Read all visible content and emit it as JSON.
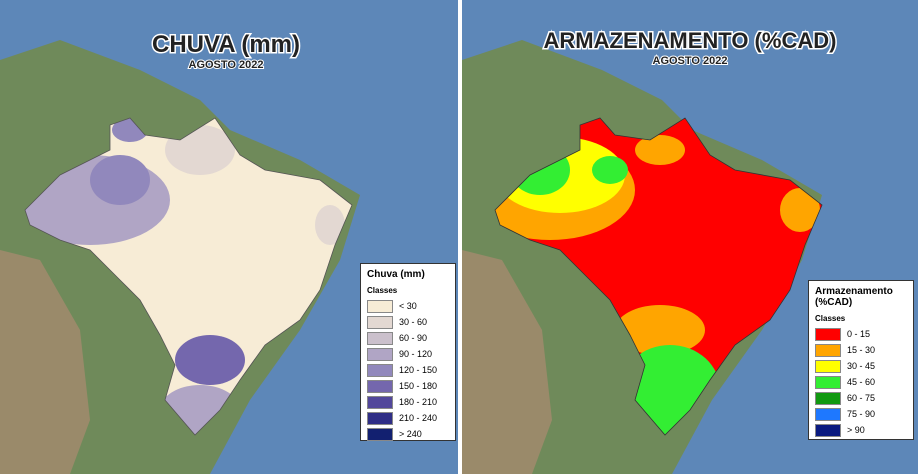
{
  "maps": [
    {
      "title": "CHUVA (mm)",
      "subtitle": "AGOSTO 2022",
      "legend": {
        "title": "Chuva (mm)",
        "subtitle": "Classes",
        "classes": [
          {
            "label": "< 30",
            "color": "#f7ecd6"
          },
          {
            "label": "30 - 60",
            "color": "#e3d8d2"
          },
          {
            "label": "60 - 90",
            "color": "#cbc0cc"
          },
          {
            "label": "90 - 120",
            "color": "#b0a5c5"
          },
          {
            "label": "120 - 150",
            "color": "#9188bc"
          },
          {
            "label": "150 - 180",
            "color": "#7467ad"
          },
          {
            "label": "180 - 210",
            "color": "#52479b"
          },
          {
            "label": "210 - 240",
            "color": "#2f2e86"
          },
          {
            "label": "> 240",
            "color": "#122070"
          }
        ]
      }
    },
    {
      "title": "ARMAZENAMENTO (%CAD)",
      "subtitle": "AGOSTO 2022",
      "legend": {
        "title": "Armazenamento (%CAD)",
        "subtitle": "Classes",
        "classes": [
          {
            "label": "0 - 15",
            "color": "#ff0000"
          },
          {
            "label": "15 - 30",
            "color": "#ffa500"
          },
          {
            "label": "30 - 45",
            "color": "#ffff00"
          },
          {
            "label": "45 - 60",
            "color": "#33ee33"
          },
          {
            "label": "60 - 75",
            "color": "#119911"
          },
          {
            "label": "75 - 90",
            "color": "#1e78ff"
          },
          {
            "label": "> 90",
            "color": "#0a1a80"
          }
        ]
      }
    }
  ]
}
